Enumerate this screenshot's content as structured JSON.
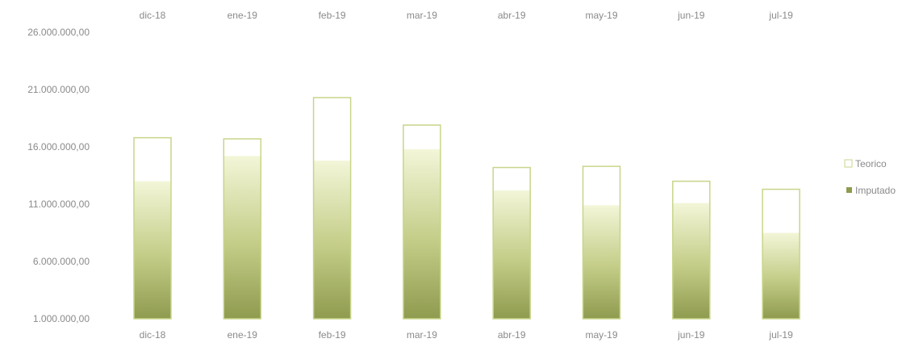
{
  "chart_data": {
    "type": "bar",
    "categories": [
      "dic-18",
      "ene-19",
      "feb-19",
      "mar-19",
      "abr-19",
      "may-19",
      "jun-19",
      "jul-19"
    ],
    "series": [
      {
        "name": "Teorico",
        "values": [
          16800000,
          16700000,
          20300000,
          17900000,
          14200000,
          14300000,
          13000000,
          12300000
        ]
      },
      {
        "name": "Imputado",
        "values": [
          13000000,
          15200000,
          14800000,
          15800000,
          12200000,
          10900000,
          11100000,
          8500000
        ]
      }
    ],
    "y_tick_labels": [
      "1.000.000,00",
      "6.000.000,00",
      "11.000.000,00",
      "16.000.000,00",
      "21.000.000,00",
      "26.000.000,00"
    ],
    "y_tick_values": [
      1000000,
      6000000,
      11000000,
      16000000,
      21000000,
      26000000
    ],
    "ylim": [
      1000000,
      26000000
    ],
    "category_labels_position": "top and bottom",
    "legend_position": "right",
    "grid": false,
    "colors": {
      "teorico_border": "#c8d58a",
      "imputado_dark": "#8f9b4f",
      "imputado_light": "#f3f6d8",
      "text": "#8a8a8a"
    }
  }
}
